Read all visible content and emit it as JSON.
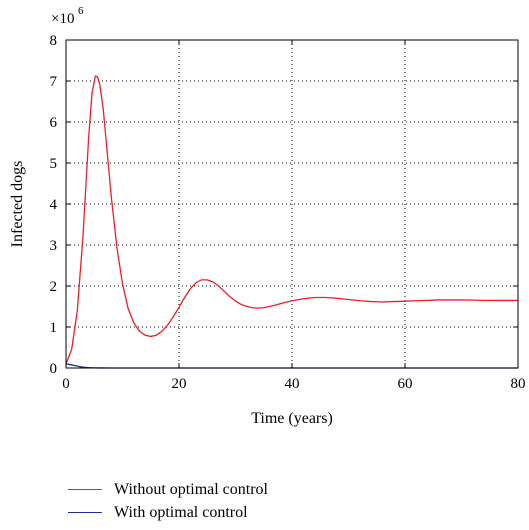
{
  "chart_data": {
    "type": "line",
    "xlabel": "Time (years)",
    "ylabel": "Infected dogs",
    "multiplier_base": "×10",
    "multiplier_exp": "6",
    "xlim": [
      0,
      80
    ],
    "ylim": [
      0,
      8
    ],
    "xticks": [
      0,
      20,
      40,
      60,
      80
    ],
    "yticks": [
      0,
      1,
      2,
      3,
      4,
      5,
      6,
      7,
      8
    ],
    "grid": true,
    "legend_position": "bottom",
    "series": [
      {
        "name": "Without optimal control",
        "color": "#e8202a",
        "x": [
          0,
          1,
          2,
          3,
          4,
          4.6,
          5.2,
          5.6,
          6,
          6.6,
          7.2,
          8,
          9,
          10,
          11,
          12,
          13,
          14,
          15,
          16,
          17,
          18,
          19,
          20,
          21,
          22,
          23,
          24,
          25,
          26,
          27,
          28,
          29,
          30,
          31,
          32,
          33,
          34,
          35,
          36,
          37,
          38,
          40,
          42,
          44,
          46,
          48,
          50,
          52,
          54,
          56,
          58,
          60,
          62,
          64,
          66,
          68,
          70,
          72,
          74,
          76,
          78,
          80
        ],
        "y": [
          0.1,
          0.45,
          1.4,
          3.2,
          5.6,
          6.7,
          7.12,
          7.1,
          6.9,
          6.3,
          5.4,
          4.2,
          2.95,
          2.05,
          1.45,
          1.1,
          0.9,
          0.8,
          0.77,
          0.8,
          0.9,
          1.05,
          1.25,
          1.48,
          1.72,
          1.93,
          2.08,
          2.15,
          2.15,
          2.1,
          2.0,
          1.87,
          1.74,
          1.63,
          1.55,
          1.5,
          1.47,
          1.46,
          1.47,
          1.5,
          1.53,
          1.57,
          1.64,
          1.69,
          1.72,
          1.72,
          1.7,
          1.67,
          1.64,
          1.62,
          1.61,
          1.62,
          1.63,
          1.64,
          1.65,
          1.66,
          1.66,
          1.66,
          1.655,
          1.65,
          1.648,
          1.648,
          1.65
        ]
      },
      {
        "name": "With optimal control",
        "color": "#1f2f8f",
        "x": [
          0,
          0.5,
          1,
          1.5,
          2,
          2.5,
          3,
          4,
          5,
          6,
          8,
          10,
          20,
          40,
          60,
          80
        ],
        "y": [
          0.1,
          0.09,
          0.075,
          0.06,
          0.045,
          0.032,
          0.022,
          0.01,
          0.004,
          0.002,
          0,
          0,
          0,
          0,
          0,
          0
        ]
      }
    ]
  }
}
